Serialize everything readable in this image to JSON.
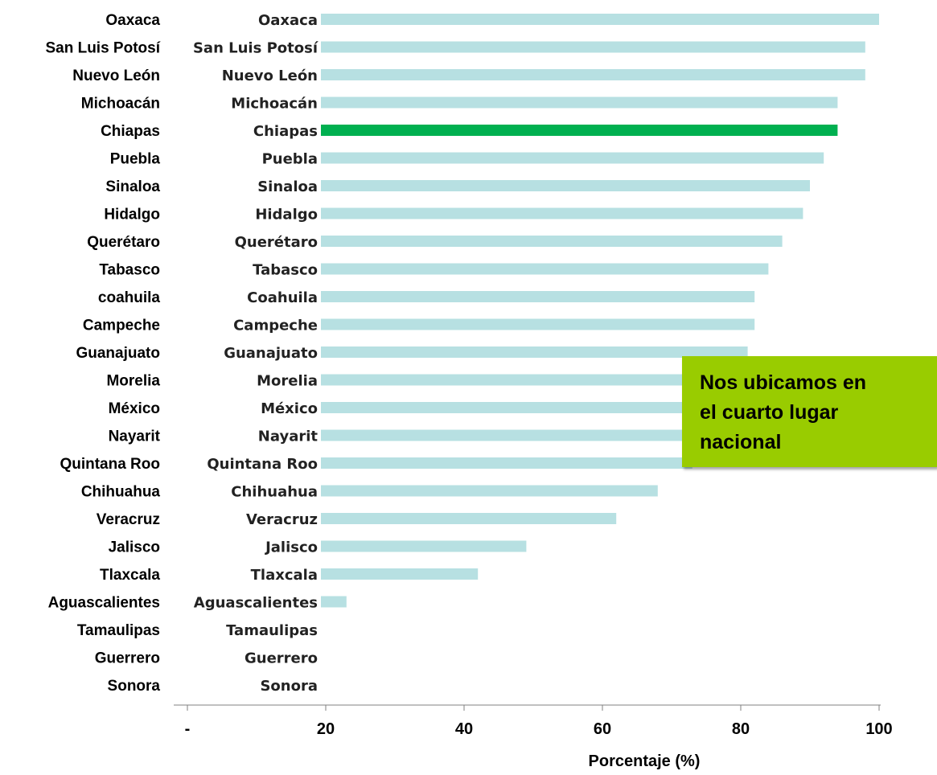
{
  "chart_data": {
    "type": "bar",
    "orientation": "horizontal",
    "categories": [
      "Oaxaca",
      "San Luis Potosí",
      "Nuevo León",
      "Michoacán",
      "Chiapas",
      "Puebla",
      "Sinaloa",
      "Hidalgo",
      "Querétaro",
      "Tabasco",
      "Coahuila",
      "Campeche",
      "Guanajuato",
      "Morelia",
      "México",
      "Nayarit",
      "Quintana Roo",
      "Chihuahua",
      "Veracruz",
      "Jalisco",
      "Tlaxcala",
      "Aguascalientes",
      "Tamaulipas",
      "Guerrero",
      "Sonora"
    ],
    "back_labels": [
      "Oaxaca",
      "San Luis Potosí",
      "Nuevo León",
      "Michoacán",
      "Chiapas",
      "Puebla",
      "Sinaloa",
      "Hidalgo",
      "Querétaro",
      "Tabasco",
      "coahuila",
      "Campeche",
      "Guanajuato",
      "Morelia",
      "México",
      "Nayarit",
      "Quintana Roo",
      "Chihuahua",
      "Veracruz",
      "Jalisco",
      "Tlaxcala",
      "Aguascalientes",
      "Tamaulipas",
      "Guerrero",
      "Sonora"
    ],
    "values": [
      100,
      98,
      98,
      94,
      94,
      92,
      90,
      89,
      86,
      84,
      82,
      82,
      81,
      77,
      77,
      75,
      73,
      68,
      62,
      49,
      42,
      23,
      0,
      0,
      0
    ],
    "highlight": "Chiapas",
    "bar_color": "#b7e0e2",
    "highlight_color": "#00b050",
    "xlim": [
      0,
      100
    ],
    "xticks": [
      0,
      20,
      40,
      60,
      80,
      100
    ],
    "xtick_labels": [
      "-",
      "20",
      "40",
      "60",
      "80",
      "100"
    ],
    "xlabel": "Porcentaje (%)",
    "grid": false
  },
  "callout": {
    "text": "Nos ubicamos en\nel cuarto lugar\nnacional",
    "color": "#99cc00"
  }
}
